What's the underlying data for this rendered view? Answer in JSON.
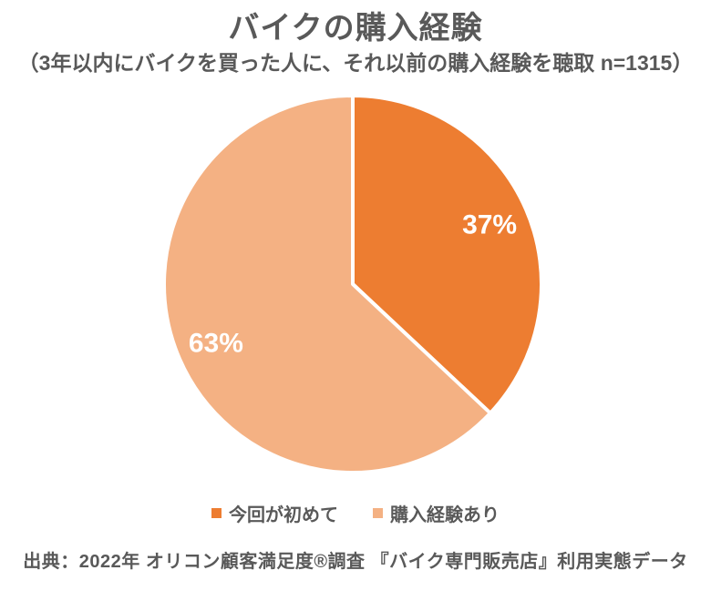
{
  "header": {
    "title": "バイクの購入経験",
    "subtitle": "（3年以内にバイクを買った人に、それ以前の購入経験を聴取 n=1315）"
  },
  "chart_data": {
    "type": "pie",
    "title": "バイクの購入経験",
    "labels": [
      "今回が初めて",
      "購入経験あり"
    ],
    "values": [
      37,
      63
    ],
    "unit": "%",
    "data_labels": [
      "37%",
      "63%"
    ],
    "colors": [
      "#ED7D31",
      "#F4B183"
    ],
    "data_label_color": "#FFFFFF",
    "divider_color": "#FFFFFF",
    "start_angle_deg": 0,
    "direction": "clockwise",
    "legend_position": "bottom",
    "n": 1315
  },
  "footer": {
    "source": "出典：2022年 オリコン顧客満足度®調査 『バイク専門販売店』利用実態データ"
  },
  "theme": {
    "text_color": "#595959",
    "background": "#FFFFFF"
  }
}
